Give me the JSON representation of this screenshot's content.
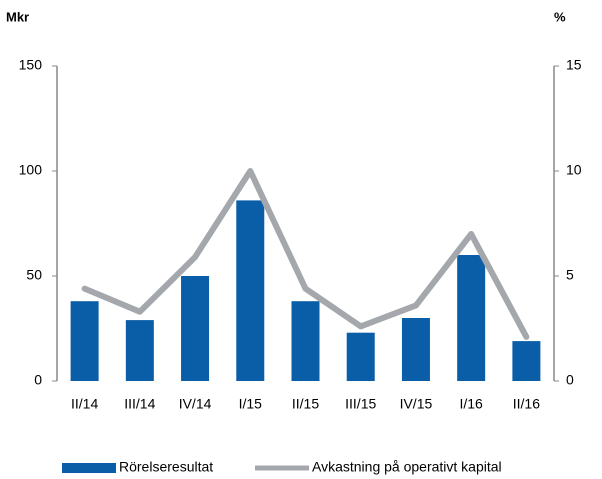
{
  "chart_data": {
    "type": "bar",
    "y_label": "Mkr",
    "y2_label": "%",
    "categories": [
      "II/14",
      "III/14",
      "IV/14",
      "I/15",
      "II/15",
      "III/15",
      "IV/15",
      "I/16",
      "II/16"
    ],
    "series": [
      {
        "name": "Rörelseresultat",
        "type": "bar",
        "color": "#0a5ea8",
        "axis": "y",
        "values": [
          38,
          29,
          50,
          86,
          38,
          23,
          30,
          60,
          19
        ]
      },
      {
        "name": "Avkastning på operativt kapital",
        "type": "line",
        "color": "#a4a8ac",
        "axis": "y2",
        "values": [
          4.4,
          3.3,
          5.9,
          10.0,
          4.4,
          2.6,
          3.6,
          7.0,
          2.1
        ]
      }
    ],
    "ylim": [
      0,
      150
    ],
    "yticks": [
      0,
      50,
      100,
      150
    ],
    "y2lim": [
      0,
      15
    ],
    "y2ticks": [
      0,
      5,
      10,
      15
    ],
    "legend": "bottom"
  }
}
